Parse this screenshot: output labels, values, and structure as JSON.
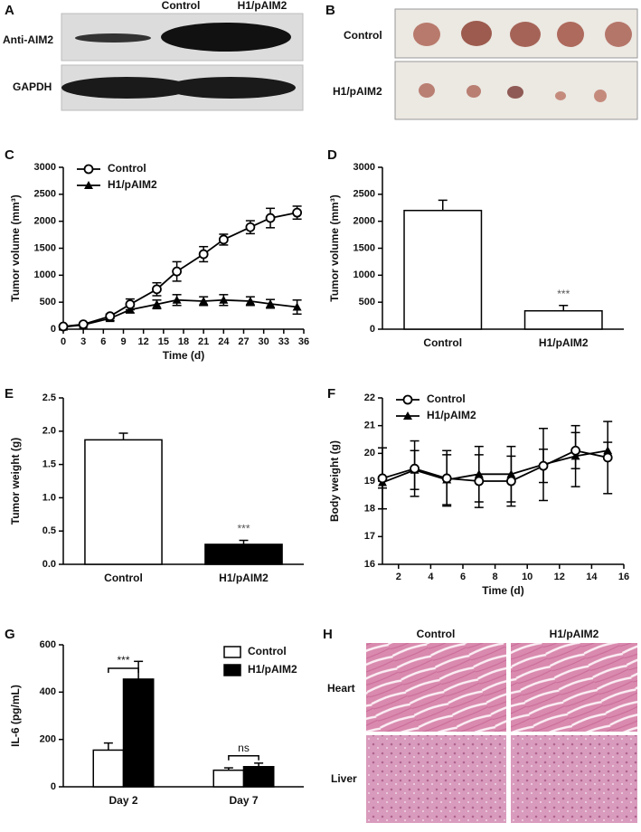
{
  "panels": [
    "A",
    "B",
    "C",
    "D",
    "E",
    "F",
    "G",
    "H"
  ],
  "blot": {
    "columns": [
      "Control",
      "H1/pAIM2"
    ],
    "rows": [
      "Anti-AIM2",
      "GAPDH"
    ]
  },
  "photos": {
    "rows": [
      "Control",
      "H1/pAIM2"
    ]
  },
  "histology": {
    "columns": [
      "Control",
      "H1/pAIM2"
    ],
    "rows": [
      "Heart",
      "Liver"
    ]
  },
  "chart_data": [
    {
      "type": "line",
      "y_label": "Tumor volume (mm³)",
      "x_label": "Time (d)",
      "x": [
        0,
        3,
        7,
        10,
        14,
        17,
        21,
        24,
        28,
        31,
        35
      ],
      "xlim": [
        0,
        36
      ],
      "xticks": [
        0,
        3,
        6,
        9,
        12,
        15,
        18,
        21,
        24,
        27,
        30,
        33,
        36
      ],
      "ylim": [
        0,
        3000
      ],
      "yticks": [
        0,
        500,
        1000,
        1500,
        2000,
        2500,
        3000
      ],
      "legend": "upper left",
      "series": [
        {
          "name": "Control",
          "color": "#000000",
          "marker": "circle",
          "values": [
            50,
            90,
            240,
            460,
            740,
            1070,
            1390,
            1660,
            1890,
            2060,
            2160
          ],
          "errors": [
            0,
            20,
            40,
            100,
            120,
            180,
            140,
            100,
            120,
            180,
            120
          ]
        },
        {
          "name": "H1/pAIM2",
          "color": "#000000",
          "marker": "triangle",
          "values": [
            40,
            80,
            200,
            360,
            460,
            540,
            520,
            540,
            520,
            470,
            410
          ],
          "errors": [
            10,
            20,
            40,
            60,
            80,
            100,
            80,
            100,
            80,
            80,
            130
          ]
        }
      ]
    },
    {
      "type": "bar",
      "y_label": "Tumor volume (mm³)",
      "categories": [
        "Control",
        "H1/pAIM2"
      ],
      "values": [
        2200,
        340
      ],
      "errors": [
        190,
        100
      ],
      "colors": [
        "#ffffff",
        "#ffffff"
      ],
      "annotations": [
        null,
        "***"
      ],
      "ylim": [
        0,
        3000
      ],
      "yticks": [
        0,
        500,
        1000,
        1500,
        2000,
        2500,
        3000
      ]
    },
    {
      "type": "bar",
      "y_label": "Tumor weight (g)",
      "categories": [
        "Control",
        "H1/pAIM2"
      ],
      "values": [
        1.87,
        0.3
      ],
      "errors": [
        0.1,
        0.06
      ],
      "colors": [
        "#ffffff",
        "#000000"
      ],
      "annotations": [
        null,
        "***"
      ],
      "ylim": [
        0,
        2.5
      ],
      "yticks": [
        {
          "value": 0,
          "label": "0.0"
        },
        0.5,
        {
          "value": 1,
          "label": "1.0"
        },
        1.5,
        {
          "value": 2,
          "label": "2.0"
        },
        2.5
      ]
    },
    {
      "type": "line",
      "y_label": "Body weight (g)",
      "x_label": "Time (d)",
      "x": [
        1,
        3,
        5,
        7,
        9,
        11,
        13,
        15
      ],
      "xlim": [
        1,
        16
      ],
      "xticks": [
        2,
        4,
        6,
        8,
        10,
        12,
        14,
        16
      ],
      "ylim": [
        16,
        22
      ],
      "yticks": [
        16,
        17,
        18,
        19,
        20,
        21,
        22
      ],
      "legend": "upper left",
      "series": [
        {
          "name": "Control",
          "color": "#000000",
          "marker": "circle",
          "values": [
            19.1,
            19.45,
            19.1,
            19.0,
            19.0,
            19.55,
            20.1,
            19.85
          ],
          "errors": [
            1.1,
            1.0,
            1.0,
            0.95,
            0.9,
            0.6,
            0.65,
            1.3
          ]
        },
        {
          "name": "H1/pAIM2",
          "color": "#000000",
          "marker": "triangle",
          "values": [
            18.95,
            19.4,
            19.05,
            19.25,
            19.25,
            19.6,
            19.9,
            20.1
          ],
          "errors": [
            0.2,
            0.7,
            0.9,
            1.0,
            1.0,
            1.3,
            1.1,
            0.3
          ]
        }
      ]
    },
    {
      "type": "grouped_bar",
      "y_label": "IL-6 (pg/mL)",
      "categories": [
        "Day 2",
        "Day 7"
      ],
      "annotations": [
        "***",
        "ns"
      ],
      "ylim": [
        0,
        600
      ],
      "yticks": [
        0,
        200,
        400,
        600
      ],
      "legend": "upper right",
      "series": [
        {
          "name": "Control",
          "color": "#ffffff",
          "values": [
            155,
            70
          ],
          "errors": [
            30,
            10
          ]
        },
        {
          "name": "H1/pAIM2",
          "color": "#000000",
          "values": [
            455,
            85
          ],
          "errors": [
            75,
            15
          ]
        }
      ]
    }
  ]
}
